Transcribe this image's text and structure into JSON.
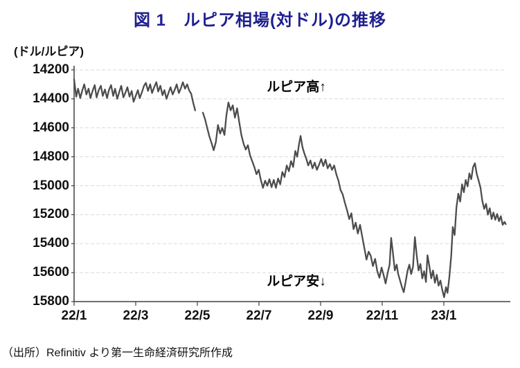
{
  "figure": {
    "title": "図 1　ルピア相場(対ドル)の推移",
    "y_axis_unit": "(ドル/ルピア)",
    "annotations": {
      "high": "ルピア高↑",
      "low": "ルピア安↓"
    },
    "source": "（出所）Refinitiv より第一生命経済研究所作成"
  },
  "chart_data": {
    "type": "line",
    "title": "図 1 ルピア相場(対ドル)の推移",
    "ylabel": "(ドル/ルピア)",
    "y_axis_inverted": true,
    "ylim": [
      14200,
      15800
    ],
    "y_ticks": [
      14200,
      14400,
      14600,
      14800,
      15000,
      15200,
      15400,
      15600,
      15800
    ],
    "x_ticks": [
      {
        "label": "22/1",
        "month": 0
      },
      {
        "label": "22/3",
        "month": 2
      },
      {
        "label": "22/5",
        "month": 4
      },
      {
        "label": "22/7",
        "month": 6
      },
      {
        "label": "22/9",
        "month": 8
      },
      {
        "label": "22/11",
        "month": 10
      },
      {
        "label": "23/1",
        "month": 12
      }
    ],
    "x_range_months": [
      0,
      14.1
    ],
    "grid": "horizontal-dashed",
    "grid_color": "#d9d9d9",
    "line_color": "#4c4c4c",
    "axis_color": "#3f3f3f",
    "series": [
      {
        "name": "ルピア相場(対ドル)",
        "x_unit": "months since 2022-01",
        "points": [
          [
            0.0,
            14265
          ],
          [
            0.07,
            14385
          ],
          [
            0.13,
            14330
          ],
          [
            0.2,
            14395
          ],
          [
            0.27,
            14340
          ],
          [
            0.33,
            14300
          ],
          [
            0.4,
            14370
          ],
          [
            0.47,
            14330
          ],
          [
            0.53,
            14395
          ],
          [
            0.6,
            14345
          ],
          [
            0.67,
            14305
          ],
          [
            0.73,
            14390
          ],
          [
            0.8,
            14340
          ],
          [
            0.87,
            14310
          ],
          [
            0.93,
            14380
          ],
          [
            1.0,
            14335
          ],
          [
            1.07,
            14395
          ],
          [
            1.13,
            14340
          ],
          [
            1.2,
            14305
          ],
          [
            1.27,
            14380
          ],
          [
            1.33,
            14330
          ],
          [
            1.4,
            14400
          ],
          [
            1.47,
            14350
          ],
          [
            1.53,
            14310
          ],
          [
            1.6,
            14390
          ],
          [
            1.67,
            14355
          ],
          [
            1.73,
            14320
          ],
          [
            1.8,
            14385
          ],
          [
            1.87,
            14345
          ],
          [
            1.93,
            14420
          ],
          [
            2.0,
            14380
          ],
          [
            2.07,
            14340
          ],
          [
            2.13,
            14395
          ],
          [
            2.2,
            14355
          ],
          [
            2.27,
            14310
          ],
          [
            2.33,
            14290
          ],
          [
            2.4,
            14345
          ],
          [
            2.47,
            14300
          ],
          [
            2.53,
            14360
          ],
          [
            2.6,
            14320
          ],
          [
            2.67,
            14285
          ],
          [
            2.73,
            14350
          ],
          [
            2.8,
            14310
          ],
          [
            2.87,
            14375
          ],
          [
            2.93,
            14340
          ],
          [
            3.0,
            14400
          ],
          [
            3.07,
            14355
          ],
          [
            3.13,
            14320
          ],
          [
            3.2,
            14370
          ],
          [
            3.27,
            14335
          ],
          [
            3.33,
            14300
          ],
          [
            3.4,
            14360
          ],
          [
            3.47,
            14325
          ],
          [
            3.53,
            14285
          ],
          [
            3.6,
            14330
          ],
          [
            3.67,
            14300
          ],
          [
            3.73,
            14340
          ],
          [
            3.8,
            14365
          ],
          [
            3.87,
            14430
          ],
          [
            3.93,
            14480
          ],
          null,
          [
            4.18,
            14495
          ],
          [
            4.25,
            14540
          ],
          [
            4.32,
            14600
          ],
          [
            4.39,
            14660
          ],
          [
            4.46,
            14705
          ],
          [
            4.53,
            14755
          ],
          [
            4.6,
            14700
          ],
          [
            4.67,
            14580
          ],
          [
            4.74,
            14640
          ],
          [
            4.81,
            14600
          ],
          [
            4.88,
            14650
          ],
          [
            4.94,
            14520
          ],
          [
            5.01,
            14425
          ],
          [
            5.08,
            14480
          ],
          [
            5.15,
            14445
          ],
          [
            5.22,
            14530
          ],
          [
            5.29,
            14465
          ],
          [
            5.36,
            14560
          ],
          [
            5.43,
            14650
          ],
          [
            5.5,
            14710
          ],
          [
            5.57,
            14750
          ],
          [
            5.64,
            14720
          ],
          [
            5.71,
            14790
          ],
          [
            5.78,
            14830
          ],
          [
            5.85,
            14870
          ],
          [
            5.92,
            14920
          ],
          [
            5.99,
            14890
          ],
          [
            6.06,
            14960
          ],
          [
            6.13,
            15015
          ],
          [
            6.2,
            14965
          ],
          [
            6.27,
            15000
          ],
          [
            6.34,
            14955
          ],
          [
            6.41,
            15010
          ],
          [
            6.48,
            14960
          ],
          [
            6.55,
            15015
          ],
          [
            6.62,
            14950
          ],
          [
            6.69,
            14990
          ],
          [
            6.76,
            14905
          ],
          [
            6.83,
            14940
          ],
          [
            6.9,
            14860
          ],
          [
            6.97,
            14900
          ],
          [
            7.04,
            14830
          ],
          [
            7.11,
            14870
          ],
          [
            7.18,
            14760
          ],
          [
            7.24,
            14800
          ],
          [
            7.3,
            14715
          ],
          [
            7.35,
            14656
          ],
          [
            7.41,
            14730
          ],
          [
            7.47,
            14775
          ],
          [
            7.54,
            14815
          ],
          [
            7.6,
            14860
          ],
          [
            7.67,
            14825
          ],
          [
            7.74,
            14880
          ],
          [
            7.81,
            14840
          ],
          [
            7.88,
            14890
          ],
          [
            7.95,
            14855
          ],
          [
            8.02,
            14815
          ],
          [
            8.09,
            14865
          ],
          [
            8.16,
            14820
          ],
          [
            8.23,
            14880
          ],
          [
            8.3,
            14850
          ],
          [
            8.37,
            14890
          ],
          [
            8.44,
            14860
          ],
          [
            8.51,
            14920
          ],
          [
            8.58,
            14965
          ],
          [
            8.65,
            15030
          ],
          [
            8.72,
            15060
          ],
          [
            8.79,
            15120
          ],
          [
            8.86,
            15170
          ],
          [
            8.93,
            15230
          ],
          [
            9.0,
            15190
          ],
          [
            9.07,
            15300
          ],
          [
            9.14,
            15255
          ],
          [
            9.21,
            15330
          ],
          [
            9.28,
            15270
          ],
          [
            9.35,
            15350
          ],
          [
            9.42,
            15430
          ],
          [
            9.49,
            15510
          ],
          [
            9.56,
            15455
          ],
          [
            9.63,
            15485
          ],
          [
            9.7,
            15555
          ],
          [
            9.77,
            15505
          ],
          [
            9.84,
            15590
          ],
          [
            9.91,
            15635
          ],
          [
            9.98,
            15565
          ],
          [
            10.05,
            15620
          ],
          [
            10.11,
            15675
          ],
          [
            10.18,
            15600
          ],
          [
            10.24,
            15545
          ],
          [
            10.29,
            15360
          ],
          [
            10.35,
            15470
          ],
          [
            10.41,
            15585
          ],
          [
            10.47,
            15545
          ],
          [
            10.52,
            15610
          ],
          [
            10.58,
            15655
          ],
          [
            10.64,
            15700
          ],
          [
            10.7,
            15735
          ],
          [
            10.76,
            15665
          ],
          [
            10.82,
            15590
          ],
          [
            10.88,
            15545
          ],
          [
            10.94,
            15610
          ],
          [
            11.0,
            15560
          ],
          [
            11.06,
            15355
          ],
          [
            11.12,
            15480
          ],
          [
            11.18,
            15585
          ],
          [
            11.24,
            15540
          ],
          [
            11.3,
            15640
          ],
          [
            11.36,
            15590
          ],
          [
            11.42,
            15665
          ],
          [
            11.47,
            15480
          ],
          [
            11.53,
            15555
          ],
          [
            11.59,
            15640
          ],
          [
            11.65,
            15585
          ],
          [
            11.71,
            15670
          ],
          [
            11.77,
            15615
          ],
          [
            11.83,
            15690
          ],
          [
            11.89,
            15655
          ],
          [
            11.95,
            15720
          ],
          [
            12.01,
            15770
          ],
          [
            12.07,
            15700
          ],
          [
            12.12,
            15740
          ],
          [
            12.18,
            15630
          ],
          [
            12.24,
            15480
          ],
          [
            12.29,
            15285
          ],
          [
            12.35,
            15340
          ],
          [
            12.41,
            15150
          ],
          [
            12.47,
            15055
          ],
          [
            12.53,
            15110
          ],
          [
            12.59,
            14990
          ],
          [
            12.65,
            15045
          ],
          [
            12.71,
            14960
          ],
          [
            12.77,
            15005
          ],
          [
            12.83,
            14915
          ],
          [
            12.89,
            14955
          ],
          [
            12.95,
            14870
          ],
          [
            13.01,
            14845
          ],
          [
            13.07,
            14920
          ],
          [
            13.13,
            14965
          ],
          [
            13.19,
            15015
          ],
          [
            13.25,
            15105
          ],
          [
            13.31,
            15160
          ],
          [
            13.37,
            15125
          ],
          [
            13.43,
            15200
          ],
          [
            13.49,
            15155
          ],
          [
            13.55,
            15230
          ],
          [
            13.61,
            15185
          ],
          [
            13.67,
            15235
          ],
          [
            13.73,
            15195
          ],
          [
            13.79,
            15245
          ],
          [
            13.85,
            15210
          ],
          [
            13.91,
            15270
          ],
          [
            13.97,
            15250
          ],
          [
            14.01,
            15265
          ]
        ]
      }
    ],
    "annotations": [
      "ルピア高↑",
      "ルピア安↓"
    ],
    "source": "（出所）Refinitiv より第一生命経済研究所作成"
  }
}
